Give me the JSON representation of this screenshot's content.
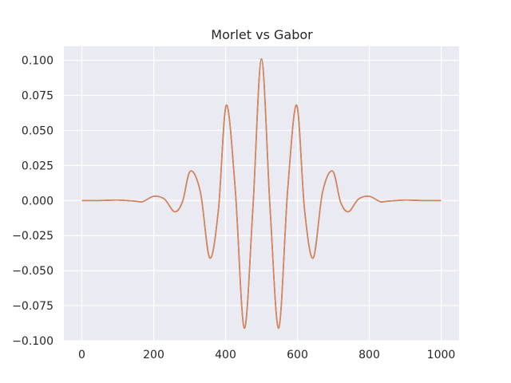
{
  "chart_data": {
    "type": "line",
    "title": "Morlet vs Gabor",
    "xlabel": "",
    "ylabel": "",
    "xlim": [
      -50,
      1050
    ],
    "ylim": [
      -0.1,
      0.11
    ],
    "x_ticks": [
      0,
      200,
      400,
      600,
      800,
      1000
    ],
    "y_ticks": [
      -0.1,
      -0.075,
      -0.05,
      -0.025,
      0.0,
      0.025,
      0.05,
      0.075,
      0.1
    ],
    "y_tick_labels": [
      "−0.100",
      "−0.075",
      "−0.050",
      "−0.025",
      "0.000",
      "0.025",
      "0.050",
      "0.075",
      "0.100"
    ],
    "grid": true,
    "background": "#eaeaf2",
    "series": [
      {
        "color": "#4c72b0",
        "x": [
          0,
          50,
          100,
          150,
          170,
          200,
          230,
          258,
          280,
          302,
          330,
          356,
          380,
          402,
          427,
          452,
          476,
          500,
          524,
          548,
          573,
          598,
          620,
          644,
          670,
          698,
          720,
          742,
          770,
          800,
          830,
          850,
          900,
          950,
          1000
        ],
        "y": [
          0.0,
          0.0,
          0.0003,
          -0.0005,
          -0.0008,
          0.003,
          0.001,
          -0.008,
          -0.001,
          0.021,
          0.006,
          -0.041,
          -0.007,
          0.068,
          0.008,
          -0.091,
          -0.006,
          0.101,
          -0.006,
          -0.091,
          0.008,
          0.068,
          -0.007,
          -0.041,
          0.006,
          0.021,
          -0.001,
          -0.008,
          0.001,
          0.003,
          -0.0008,
          -0.0005,
          0.0003,
          0.0,
          0.0
        ]
      },
      {
        "color": "#dd8452",
        "x": [
          0,
          50,
          100,
          150,
          170,
          200,
          230,
          258,
          280,
          302,
          330,
          356,
          380,
          402,
          427,
          452,
          476,
          500,
          524,
          548,
          573,
          598,
          620,
          644,
          670,
          698,
          720,
          742,
          770,
          800,
          830,
          850,
          900,
          950,
          1000
        ],
        "y": [
          0.0,
          0.0,
          0.0003,
          -0.0005,
          -0.0008,
          0.003,
          0.001,
          -0.008,
          -0.001,
          0.021,
          0.006,
          -0.041,
          -0.007,
          0.068,
          0.008,
          -0.091,
          -0.006,
          0.101,
          -0.006,
          -0.091,
          0.008,
          0.068,
          -0.007,
          -0.041,
          0.006,
          0.021,
          -0.001,
          -0.008,
          0.001,
          0.003,
          -0.0008,
          -0.0005,
          0.0003,
          0.0,
          0.0
        ]
      }
    ]
  }
}
